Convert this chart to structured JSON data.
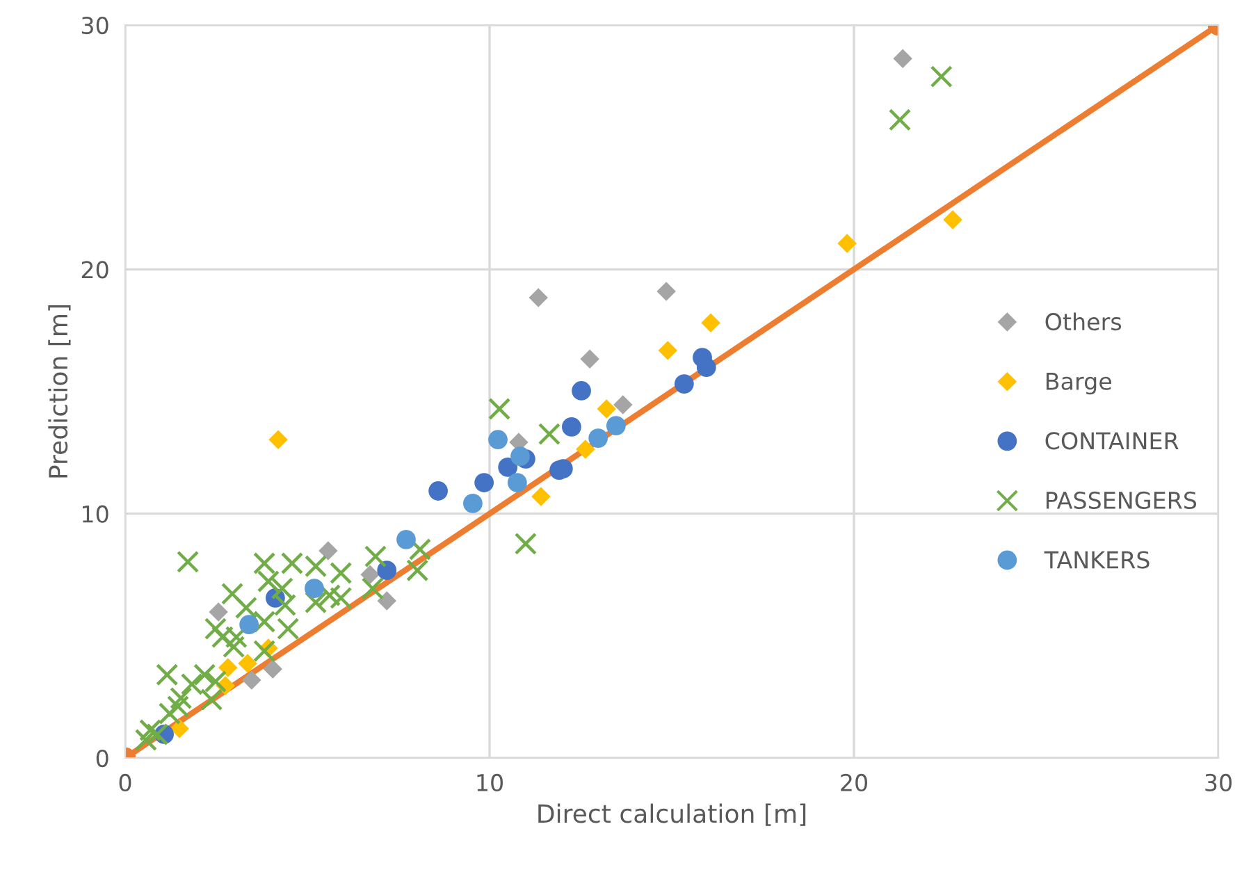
{
  "chart_data": {
    "type": "scatter",
    "xlabel": "Direct calculation [m]",
    "ylabel": "Prediction [m]",
    "xlim": [
      0,
      30
    ],
    "ylim": [
      0,
      30
    ],
    "xticks": [
      0,
      10,
      20,
      30
    ],
    "yticks": [
      0,
      10,
      20,
      30
    ],
    "grid": true,
    "legend": "right",
    "series": [
      {
        "type": "line",
        "color": "#ed7d31",
        "marker": "circle",
        "line_style": "solid",
        "x": [
          0,
          30
        ],
        "values": [
          0,
          30
        ]
      },
      {
        "name": "Others",
        "color": "#a5a5a5",
        "marker": "diamond",
        "x": [
          21.34,
          11.34,
          14.85,
          12.75,
          13.66,
          10.8,
          5.57,
          6.72,
          7.18,
          2.56,
          3.47,
          4.05
        ],
        "values": [
          28.63,
          18.84,
          19.1,
          16.33,
          14.46,
          12.92,
          8.48,
          7.51,
          6.43,
          5.98,
          3.19,
          3.64
        ]
      },
      {
        "name": "Barge",
        "color": "#ffc000",
        "marker": "diamond",
        "x": [
          4.2,
          19.81,
          22.71,
          16.07,
          14.89,
          13.21,
          12.63,
          11.41,
          3.93,
          3.36,
          2.82,
          2.75,
          1.49
        ],
        "values": [
          13.03,
          21.06,
          22.03,
          17.81,
          16.68,
          14.29,
          12.64,
          10.7,
          4.5,
          3.87,
          3.7,
          2.96,
          1.2
        ]
      },
      {
        "name": "CONTAINER",
        "color": "#4472c4",
        "marker": "circle",
        "x": [
          1.07,
          4.12,
          7.18,
          8.59,
          9.85,
          10.5,
          10.99,
          11.91,
          12.02,
          12.25,
          12.52,
          15.34,
          15.84,
          15.95
        ],
        "values": [
          0.97,
          6.55,
          7.68,
          10.93,
          11.27,
          11.9,
          12.24,
          11.78,
          11.84,
          13.55,
          15.03,
          15.31,
          16.39,
          15.99
        ]
      },
      {
        "name": "PASSENGERS",
        "color": "#70ad47",
        "marker": "cross",
        "x": [
          21.26,
          22.4,
          10.27,
          10.99,
          11.64,
          1.72,
          3.82,
          4.58,
          5.23,
          5.92,
          6.87,
          8.09,
          8.02,
          6.79,
          3.93,
          4.31,
          2.94,
          3.32,
          4.39,
          5.23,
          5.61,
          5.92,
          2.48,
          2.67,
          3.05,
          3.82,
          4.47,
          3.82,
          2.98,
          1.15,
          2.18,
          1.83,
          2.48,
          1.53,
          1.45,
          2.37,
          1.22,
          0.69,
          0.88,
          0.57
        ],
        "values": [
          26.12,
          27.89,
          14.29,
          8.77,
          13.26,
          8.03,
          7.97,
          7.97,
          7.85,
          7.57,
          8.25,
          8.54,
          7.68,
          6.94,
          7.23,
          6.94,
          6.72,
          6.15,
          6.26,
          6.37,
          6.66,
          6.55,
          5.29,
          4.95,
          4.95,
          5.58,
          5.29,
          4.38,
          4.55,
          3.41,
          3.41,
          3.02,
          3.13,
          2.45,
          2.11,
          2.39,
          1.82,
          1.14,
          0.97,
          0.74
        ]
      },
      {
        "name": "TANKERS",
        "color": "#5b9bd5",
        "marker": "circle",
        "x": [
          7.71,
          5.19,
          3.4,
          9.54,
          10.23,
          10.84,
          10.76,
          12.98,
          13.47
        ],
        "values": [
          8.94,
          6.94,
          5.46,
          10.42,
          13.03,
          12.35,
          11.27,
          13.09,
          13.6
        ]
      }
    ]
  }
}
